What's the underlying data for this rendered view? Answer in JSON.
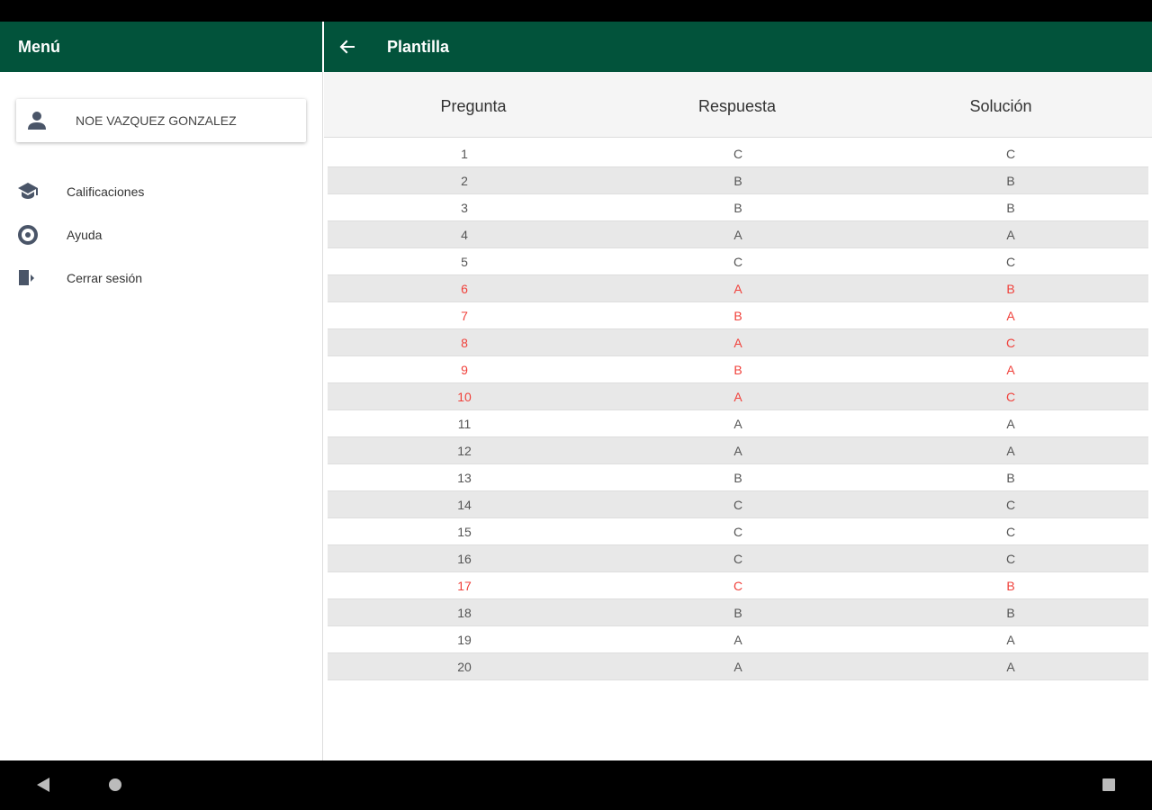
{
  "menu": {
    "title": "Menú",
    "user": "NOE VAZQUEZ GONZALEZ",
    "items": [
      "Calificaciones",
      "Ayuda",
      "Cerrar sesión"
    ]
  },
  "header": {
    "title": "Plantilla"
  },
  "table": {
    "columns": [
      "Pregunta",
      "Respuesta",
      "Solución"
    ],
    "rows": [
      {
        "cells": [
          1,
          "C",
          "C"
        ],
        "color": "#555555"
      },
      {
        "cells": [
          2,
          "B",
          "B"
        ],
        "color": "#555555"
      },
      {
        "cells": [
          3,
          "B",
          "B"
        ],
        "color": "#555555"
      },
      {
        "cells": [
          4,
          "A",
          "A"
        ],
        "color": "#555555"
      },
      {
        "cells": [
          5,
          "C",
          "C"
        ],
        "color": "#555555"
      },
      {
        "cells": [
          6,
          "A",
          "B"
        ],
        "color": "#f0413b"
      },
      {
        "cells": [
          7,
          "B",
          "A"
        ],
        "color": "#f0413b"
      },
      {
        "cells": [
          8,
          "A",
          "C"
        ],
        "color": "#f0413b"
      },
      {
        "cells": [
          9,
          "B",
          "A"
        ],
        "color": "#f0413b"
      },
      {
        "cells": [
          10,
          "A",
          "C"
        ],
        "color": "#f0413b"
      },
      {
        "cells": [
          11,
          "A",
          "A"
        ],
        "color": "#555555"
      },
      {
        "cells": [
          12,
          "A",
          "A"
        ],
        "color": "#555555"
      },
      {
        "cells": [
          13,
          "B",
          "B"
        ],
        "color": "#555555"
      },
      {
        "cells": [
          14,
          "C",
          "C"
        ],
        "color": "#555555"
      },
      {
        "cells": [
          15,
          "C",
          "C"
        ],
        "color": "#555555"
      },
      {
        "cells": [
          16,
          "C",
          "C"
        ],
        "color": "#555555"
      },
      {
        "cells": [
          17,
          "C",
          "B"
        ],
        "color": "#f0413b"
      },
      {
        "cells": [
          18,
          "B",
          "B"
        ],
        "color": "#555555"
      },
      {
        "cells": [
          19,
          "A",
          "A"
        ],
        "color": "#555555"
      },
      {
        "cells": [
          20,
          "A",
          "A"
        ],
        "color": "#555555"
      }
    ]
  }
}
